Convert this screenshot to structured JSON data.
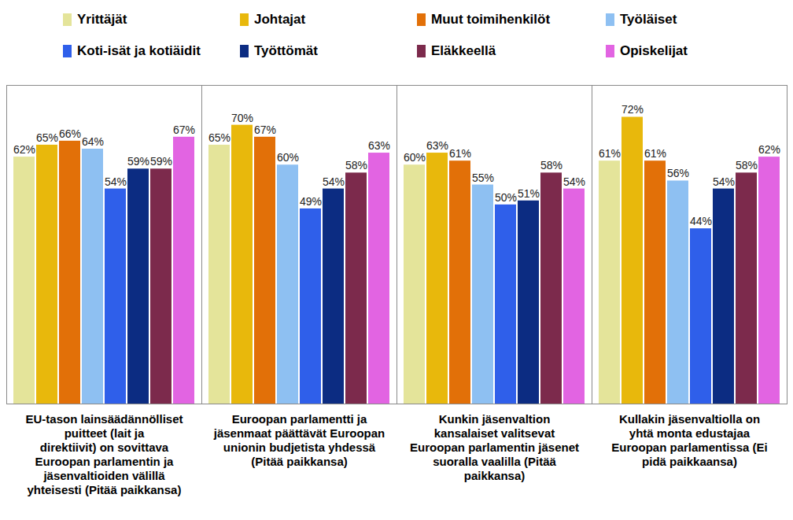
{
  "chart_data": {
    "type": "bar",
    "categories": [
      "EU-tason lainsäädännölliset puitteet (lait ja direktiivit) on sovittava Euroopan parlamentin ja jäsenvaltioiden välillä yhteisesti (Pitää paikkansa)",
      "Euroopan parlamentti ja jäsenmaat päättävät Euroopan unionin budjetista yhdessä (Pitää paikkansa)",
      "Kunkin jäsenvaltion kansalaiset valitsevat Euroopan parlamentin jäsenet suoralla vaalilla (Pitää paikkansa)",
      "Kullakin jäsenvaltiolla on yhtä monta edustajaa Euroopan parlamentissa (Ei pidä paikkaansa)"
    ],
    "series": [
      {
        "name": "Yrittäjät",
        "color": "#e4e49a",
        "values": [
          62,
          65,
          60,
          61
        ],
        "value_labels": [
          "62%",
          "65%",
          "60%",
          "61%"
        ]
      },
      {
        "name": "Johtajat",
        "color": "#e8b80c",
        "values": [
          65,
          70,
          63,
          72
        ],
        "value_labels": [
          "65%",
          "70%",
          "63%",
          "72%"
        ]
      },
      {
        "name": "Muut toimihenkilöt",
        "color": "#e27008",
        "values": [
          66,
          67,
          61,
          61
        ],
        "value_labels": [
          "66%",
          "67%",
          "61%",
          "61%"
        ]
      },
      {
        "name": "Työläiset",
        "color": "#8ec0f2",
        "values": [
          64,
          60,
          55,
          56
        ],
        "value_labels": [
          "64%",
          "60%",
          "55%",
          "56%"
        ]
      },
      {
        "name": "Koti-isät ja kotiäidit",
        "color": "#2f5fea",
        "values": [
          54,
          49,
          50,
          44
        ],
        "value_labels": [
          "54%",
          "49%",
          "50%",
          "44%"
        ]
      },
      {
        "name": "Työttömät",
        "color": "#0c2c82",
        "values": [
          59,
          54,
          51,
          54
        ],
        "value_labels": [
          "59%",
          "54%",
          "51%",
          "54%"
        ]
      },
      {
        "name": "Eläkkeellä",
        "color": "#7c2a4c",
        "values": [
          59,
          58,
          58,
          58
        ],
        "value_labels": [
          "59%",
          "58%",
          "58%",
          "58%"
        ]
      },
      {
        "name": "Opiskelijat",
        "color": "#e264e2",
        "values": [
          67,
          63,
          54,
          62
        ],
        "value_labels": [
          "67%",
          "63%",
          "54%",
          "62%"
        ]
      }
    ],
    "ylim": [
      0,
      80
    ],
    "yticks": [],
    "tick_labels": "x",
    "data_labels": true,
    "legend": "top",
    "grid": false
  }
}
